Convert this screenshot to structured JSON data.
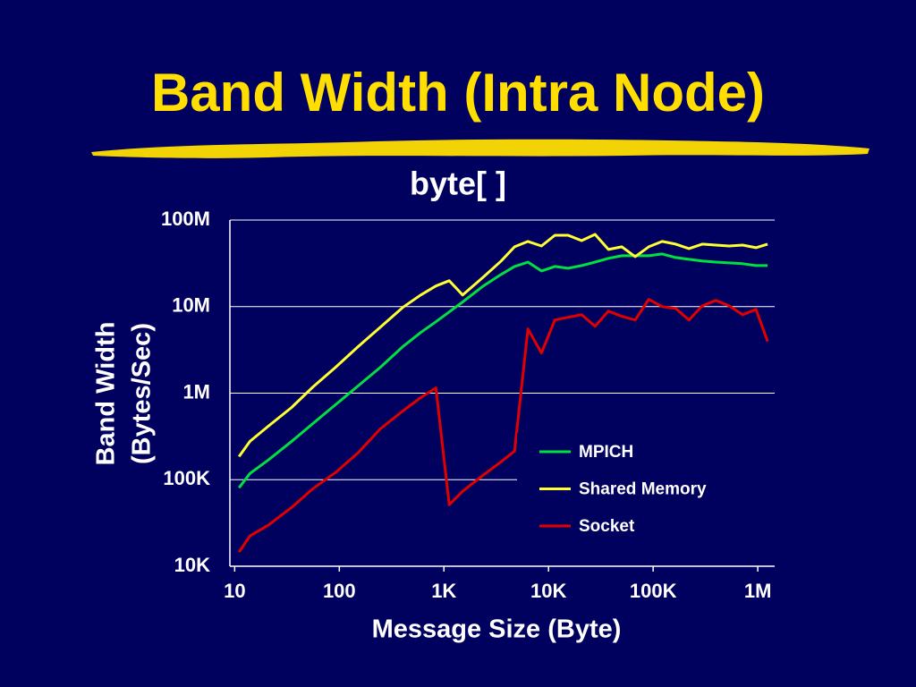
{
  "chart_data": {
    "type": "line",
    "slide_title": "Band Width (Intra Node)",
    "title": "byte[ ]",
    "xlabel": "Message Size (Byte)",
    "ylabel": [
      "Band Width",
      "(Bytes/Sec)"
    ],
    "log_x": true,
    "log_y": true,
    "grid": true,
    "legend": "lower-right",
    "xlim": [
      9,
      1450000
    ],
    "ylim": [
      10000,
      100000000
    ],
    "xticks": [
      10,
      100,
      {
        "value": 1000,
        "label": "1K"
      },
      {
        "value": 10000,
        "label": "10K"
      },
      {
        "value": 100000,
        "label": "100K"
      },
      {
        "value": 1000000,
        "label": "1M"
      }
    ],
    "yticks": [
      {
        "value": 10000,
        "label": "10K"
      },
      {
        "value": 100000,
        "label": "100K"
      },
      {
        "value": 1000000,
        "label": "1M"
      },
      {
        "value": 10000000,
        "label": "10M"
      },
      {
        "value": 100000000,
        "label": "100M"
      }
    ],
    "x": [
      11,
      14,
      21,
      35,
      56,
      92,
      151,
      247,
      404,
      600,
      838,
      1125,
      1510,
      2380,
      3520,
      4730,
      6350,
      8550,
      11500,
      15400,
      20700,
      27800,
      37400,
      50200,
      67400,
      90600,
      122000,
      164000,
      220000,
      295000,
      396000,
      532000,
      716000,
      961000,
      1240000
    ],
    "series": [
      {
        "name": "MPICH",
        "color": "#00e040",
        "values": [
          80700,
          118000,
          169000,
          277000,
          446000,
          735000,
          1210000,
          1990000,
          3440000,
          5020000,
          6680000,
          8670000,
          11300000,
          17300000,
          23500000,
          29100000,
          32700000,
          25800000,
          29100000,
          27700000,
          29800000,
          32700000,
          36100000,
          38700000,
          38700000,
          38700000,
          40600000,
          36900000,
          35200000,
          33600000,
          32700000,
          32000000,
          31300000,
          29800000,
          29800000
        ]
      },
      {
        "name": "Shared Memory",
        "color": "#ffff33",
        "values": [
          185000,
          277000,
          416000,
          684000,
          1180000,
          1990000,
          3440000,
          5790000,
          9770000,
          13600000,
          17300000,
          19900000,
          13600000,
          21900000,
          33600000,
          49100000,
          56600000,
          50200000,
          66800000,
          66800000,
          57900000,
          68400000,
          45700000,
          49100000,
          37800000,
          49100000,
          56600000,
          52700000,
          46800000,
          52700000,
          51400000,
          50200000,
          51400000,
          47900000,
          52700000
        ]
      },
      {
        "name": "Socket",
        "color": "#e00000",
        "values": [
          14600,
          22400,
          29800,
          47900,
          78900,
          121000,
          204000,
          387000,
          622000,
          887000,
          1150000,
          51400,
          73500,
          113000,
          161000,
          214000,
          5520000,
          2910000,
          7000000,
          7520000,
          8070000,
          5930000,
          8870000,
          7710000,
          7000000,
          12100000,
          10000000,
          9530000,
          7000000,
          10200000,
          11800000,
          10200000,
          8070000,
          9310000,
          3960000
        ]
      }
    ]
  }
}
